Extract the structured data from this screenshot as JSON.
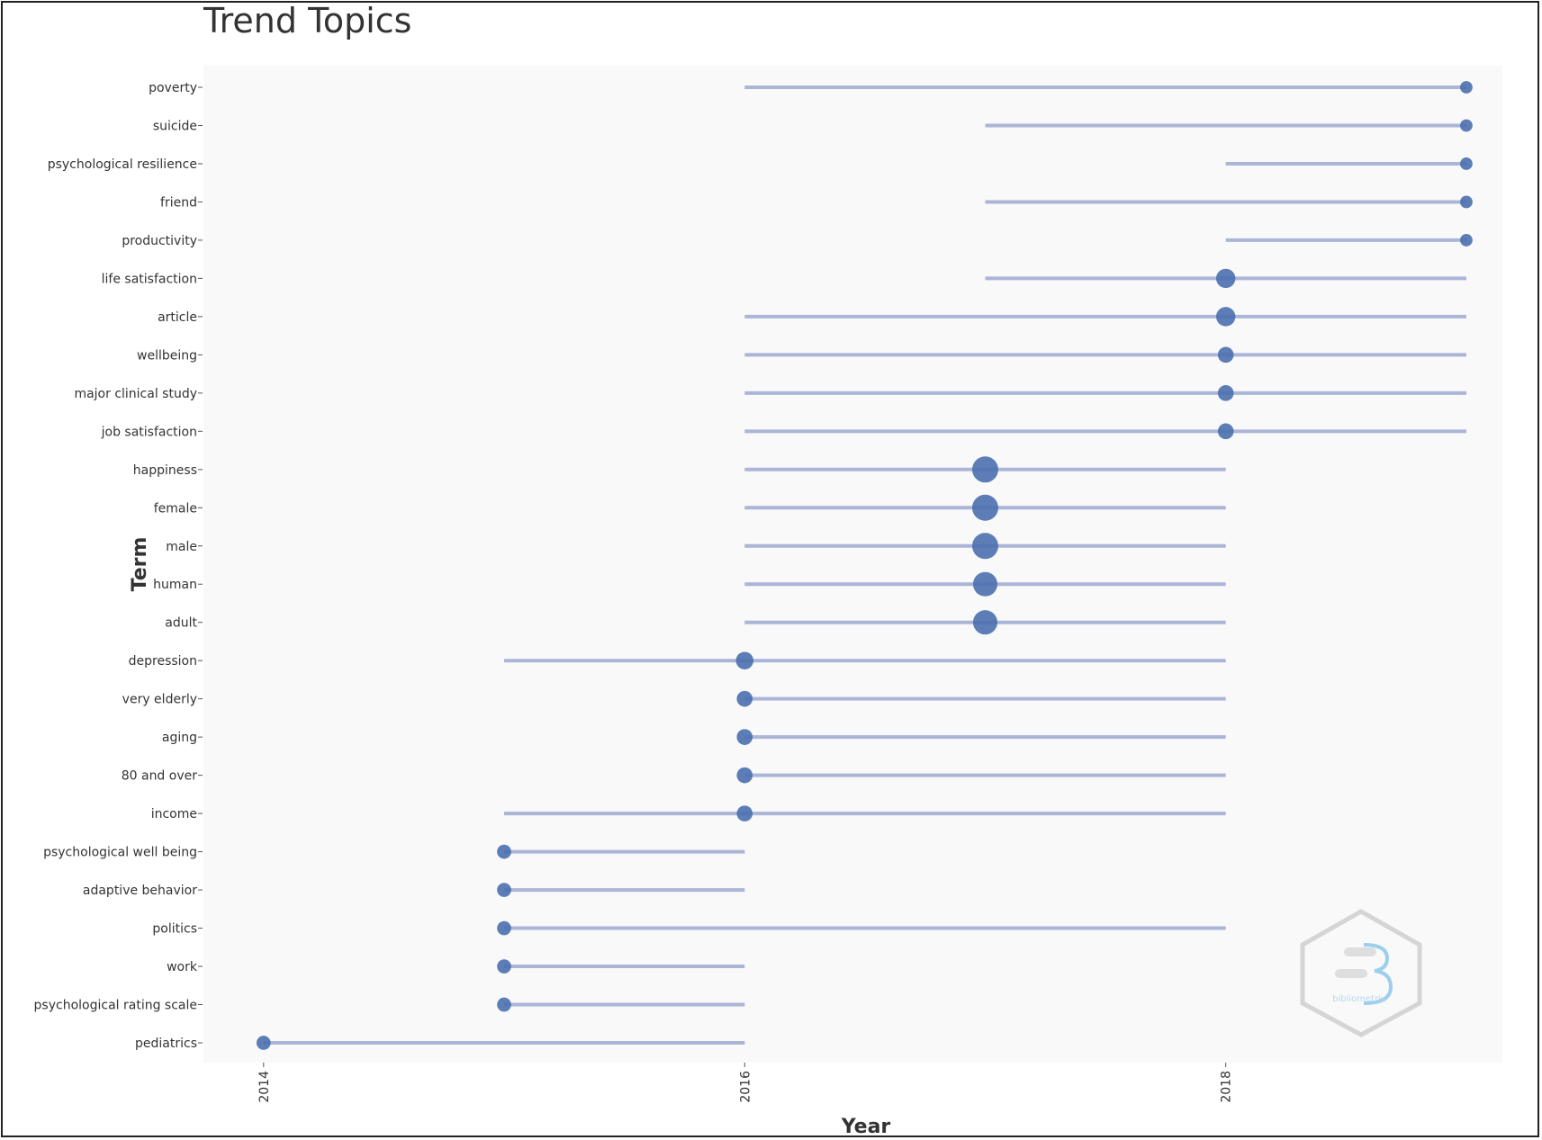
{
  "chart_data": {
    "type": "scatter",
    "title": "Trend Topics",
    "xlabel": "Year",
    "ylabel": "Term",
    "xlim": [
      2013.75,
      2019.15
    ],
    "x_ticks": [
      "2014",
      "2016",
      "2018"
    ],
    "colors": {
      "point": "#4a6fae",
      "segment": "#aab5d8",
      "plot_bg": "#f9f9f9"
    },
    "watermark_text": "bibliometrix",
    "terms": [
      {
        "term": "poverty",
        "q1": 2016,
        "median": 2019,
        "q3": 2019,
        "size": 1
      },
      {
        "term": "suicide",
        "q1": 2017,
        "median": 2019,
        "q3": 2019,
        "size": 1
      },
      {
        "term": "psychological resilience",
        "q1": 2018,
        "median": 2019,
        "q3": 2019,
        "size": 1
      },
      {
        "term": "friend",
        "q1": 2017,
        "median": 2019,
        "q3": 2019,
        "size": 1
      },
      {
        "term": "productivity",
        "q1": 2018,
        "median": 2019,
        "q3": 2019,
        "size": 1
      },
      {
        "term": "life satisfaction",
        "q1": 2017,
        "median": 2018,
        "q3": 2019,
        "size": 3
      },
      {
        "term": "article",
        "q1": 2016,
        "median": 2018,
        "q3": 2019,
        "size": 3
      },
      {
        "term": "wellbeing",
        "q1": 2016,
        "median": 2018,
        "q3": 2019,
        "size": 2
      },
      {
        "term": "major clinical study",
        "q1": 2016,
        "median": 2018,
        "q3": 2019,
        "size": 2
      },
      {
        "term": "job satisfaction",
        "q1": 2016,
        "median": 2018,
        "q3": 2019,
        "size": 2
      },
      {
        "term": "happiness",
        "q1": 2016,
        "median": 2017,
        "q3": 2018,
        "size": 5
      },
      {
        "term": "female",
        "q1": 2016,
        "median": 2017,
        "q3": 2018,
        "size": 5
      },
      {
        "term": "male",
        "q1": 2016,
        "median": 2017,
        "q3": 2018,
        "size": 5
      },
      {
        "term": "human",
        "q1": 2016,
        "median": 2017,
        "q3": 2018,
        "size": 4.5
      },
      {
        "term": "adult",
        "q1": 2016,
        "median": 2017,
        "q3": 2018,
        "size": 4.5
      },
      {
        "term": "depression",
        "q1": 2015,
        "median": 2016,
        "q3": 2018,
        "size": 2.5
      },
      {
        "term": "very elderly",
        "q1": 2016,
        "median": 2016,
        "q3": 2018,
        "size": 2
      },
      {
        "term": "aging",
        "q1": 2016,
        "median": 2016,
        "q3": 2018,
        "size": 2
      },
      {
        "term": "80 and over",
        "q1": 2016,
        "median": 2016,
        "q3": 2018,
        "size": 2
      },
      {
        "term": "income",
        "q1": 2015,
        "median": 2016,
        "q3": 2018,
        "size": 2
      },
      {
        "term": "psychological well being",
        "q1": 2015,
        "median": 2015,
        "q3": 2016,
        "size": 1.5
      },
      {
        "term": "adaptive behavior",
        "q1": 2015,
        "median": 2015,
        "q3": 2016,
        "size": 1.5
      },
      {
        "term": "politics",
        "q1": 2015,
        "median": 2015,
        "q3": 2018,
        "size": 1.5
      },
      {
        "term": "work",
        "q1": 2015,
        "median": 2015,
        "q3": 2016,
        "size": 1.5
      },
      {
        "term": "psychological rating scale",
        "q1": 2015,
        "median": 2015,
        "q3": 2016,
        "size": 1.5
      },
      {
        "term": "pediatrics",
        "q1": 2014,
        "median": 2014,
        "q3": 2016,
        "size": 1.5
      }
    ]
  }
}
